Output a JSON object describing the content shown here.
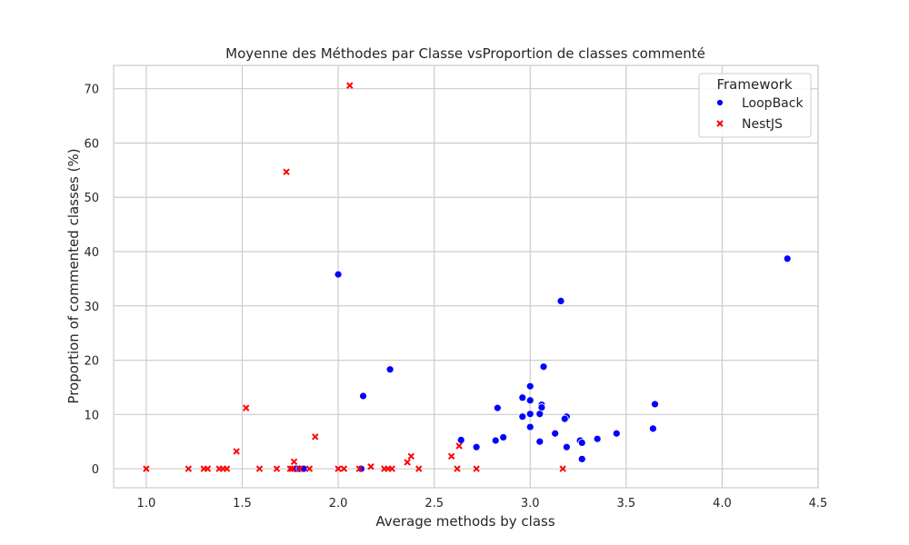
{
  "chart_data": {
    "type": "scatter",
    "title": "Moyenne des Méthodes par Classe vsProportion de classes commenté",
    "xlabel": "Average methods by class",
    "ylabel": "Proportion of commented classes (%)",
    "xlim": [
      0.83,
      4.5
    ],
    "ylim": [
      -3.5,
      74.3
    ],
    "xticks": [
      1.0,
      1.5,
      2.0,
      2.5,
      3.0,
      3.5,
      4.0,
      4.5
    ],
    "xtick_labels": [
      "1.0",
      "1.5",
      "2.0",
      "2.5",
      "3.0",
      "3.5",
      "4.0",
      "4.5"
    ],
    "yticks": [
      0,
      10,
      20,
      30,
      40,
      50,
      60,
      70
    ],
    "ytick_labels": [
      "0",
      "10",
      "20",
      "30",
      "40",
      "50",
      "60",
      "70"
    ],
    "grid": true,
    "legend": {
      "title": "Framework",
      "position": "top-right"
    },
    "series": [
      {
        "name": "LoopBack",
        "marker": "circle",
        "color": "#0000ff",
        "points": [
          [
            4.34,
            38.7
          ],
          [
            2.0,
            35.8
          ],
          [
            3.16,
            30.9
          ],
          [
            3.07,
            18.8
          ],
          [
            2.27,
            18.3
          ],
          [
            3.0,
            15.2
          ],
          [
            2.13,
            13.4
          ],
          [
            2.96,
            13.1
          ],
          [
            3.0,
            12.6
          ],
          [
            3.65,
            11.9
          ],
          [
            3.06,
            11.8
          ],
          [
            3.06,
            11.3
          ],
          [
            2.83,
            11.2
          ],
          [
            3.0,
            10.1
          ],
          [
            3.05,
            10.1
          ],
          [
            2.96,
            9.6
          ],
          [
            3.19,
            9.6
          ],
          [
            3.18,
            9.2
          ],
          [
            3.0,
            7.7
          ],
          [
            3.64,
            7.4
          ],
          [
            3.13,
            6.5
          ],
          [
            3.45,
            6.5
          ],
          [
            2.86,
            5.8
          ],
          [
            3.35,
            5.5
          ],
          [
            2.64,
            5.3
          ],
          [
            2.82,
            5.2
          ],
          [
            3.26,
            5.2
          ],
          [
            3.05,
            5.0
          ],
          [
            3.27,
            4.8
          ],
          [
            2.72,
            4.0
          ],
          [
            3.19,
            4.0
          ],
          [
            3.27,
            1.8
          ],
          [
            1.78,
            0.0
          ],
          [
            1.8,
            0.0
          ],
          [
            1.82,
            0.0
          ],
          [
            2.12,
            0.0
          ]
        ]
      },
      {
        "name": "NestJS",
        "marker": "x",
        "color": "#ff0000",
        "points": [
          [
            2.06,
            70.6
          ],
          [
            1.73,
            54.7
          ],
          [
            1.52,
            11.2
          ],
          [
            1.88,
            5.9
          ],
          [
            2.63,
            4.2
          ],
          [
            1.47,
            3.2
          ],
          [
            2.38,
            2.3
          ],
          [
            2.59,
            2.3
          ],
          [
            1.77,
            1.3
          ],
          [
            2.36,
            1.2
          ],
          [
            2.17,
            0.4
          ],
          [
            1.0,
            0.0
          ],
          [
            1.22,
            0.0
          ],
          [
            1.3,
            0.0
          ],
          [
            1.32,
            0.0
          ],
          [
            1.38,
            0.0
          ],
          [
            1.4,
            0.0
          ],
          [
            1.42,
            0.0
          ],
          [
            1.59,
            0.0
          ],
          [
            1.68,
            0.0
          ],
          [
            1.75,
            0.0
          ],
          [
            1.76,
            0.0
          ],
          [
            1.8,
            0.0
          ],
          [
            1.85,
            0.0
          ],
          [
            2.0,
            0.0
          ],
          [
            2.03,
            0.0
          ],
          [
            2.11,
            0.0
          ],
          [
            2.24,
            0.0
          ],
          [
            2.26,
            0.0
          ],
          [
            2.28,
            0.0
          ],
          [
            2.42,
            0.0
          ],
          [
            2.62,
            0.0
          ],
          [
            2.72,
            0.0
          ],
          [
            3.17,
            0.0
          ]
        ]
      }
    ]
  }
}
